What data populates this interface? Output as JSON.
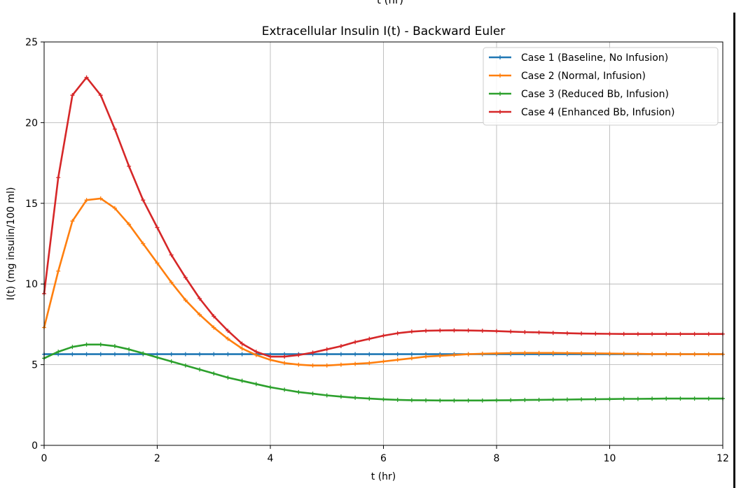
{
  "cutoff_label": "t (hr)",
  "chart_data": {
    "type": "line",
    "title": "Extracellular Insulin I(t) - Backward Euler",
    "xlabel": "t (hr)",
    "ylabel": "I(t) (mg insulin/100 ml)",
    "xlim": [
      0,
      12
    ],
    "ylim": [
      0,
      25
    ],
    "xticks": [
      0,
      2,
      4,
      6,
      8,
      10,
      12
    ],
    "yticks": [
      0,
      5,
      10,
      15,
      20,
      25
    ],
    "grid": true,
    "legend_position": "top-right",
    "x": [
      0,
      0.25,
      0.5,
      0.75,
      1.0,
      1.25,
      1.5,
      1.75,
      2.0,
      2.25,
      2.5,
      2.75,
      3.0,
      3.25,
      3.5,
      3.75,
      4.0,
      4.25,
      4.5,
      4.75,
      5.0,
      5.25,
      5.5,
      5.75,
      6.0,
      6.25,
      6.5,
      6.75,
      7.0,
      7.25,
      7.5,
      7.75,
      8.0,
      8.25,
      8.5,
      8.75,
      9.0,
      9.25,
      9.5,
      9.75,
      10.0,
      10.25,
      10.5,
      10.75,
      11.0,
      11.25,
      11.5,
      11.75,
      12.0
    ],
    "series": [
      {
        "name": "Case 1 (Baseline, No Infusion)",
        "color": "#1f77b4",
        "marker": "+",
        "values": [
          5.65,
          5.65,
          5.65,
          5.65,
          5.65,
          5.65,
          5.65,
          5.65,
          5.65,
          5.65,
          5.65,
          5.65,
          5.65,
          5.65,
          5.65,
          5.65,
          5.65,
          5.65,
          5.65,
          5.65,
          5.65,
          5.65,
          5.65,
          5.65,
          5.65,
          5.65,
          5.65,
          5.65,
          5.65,
          5.65,
          5.65,
          5.65,
          5.65,
          5.65,
          5.65,
          5.65,
          5.65,
          5.65,
          5.65,
          5.65,
          5.65,
          5.65,
          5.65,
          5.65,
          5.65,
          5.65,
          5.65,
          5.65,
          5.65
        ]
      },
      {
        "name": "Case 2 (Normal, Infusion)",
        "color": "#ff7f0e",
        "marker": "+",
        "values": [
          7.3,
          10.8,
          13.9,
          15.2,
          15.3,
          14.7,
          13.7,
          12.5,
          11.3,
          10.1,
          9.0,
          8.1,
          7.3,
          6.6,
          6.0,
          5.6,
          5.3,
          5.1,
          5.0,
          4.95,
          4.95,
          5.0,
          5.05,
          5.1,
          5.2,
          5.3,
          5.4,
          5.5,
          5.55,
          5.6,
          5.65,
          5.68,
          5.7,
          5.72,
          5.73,
          5.73,
          5.73,
          5.72,
          5.71,
          5.7,
          5.69,
          5.68,
          5.67,
          5.66,
          5.66,
          5.65,
          5.65,
          5.65,
          5.65
        ]
      },
      {
        "name": "Case 3 (Reduced Bb, Infusion)",
        "color": "#2ca02c",
        "marker": "+",
        "values": [
          5.4,
          5.8,
          6.1,
          6.25,
          6.25,
          6.15,
          5.95,
          5.7,
          5.45,
          5.2,
          4.95,
          4.7,
          4.45,
          4.2,
          4.0,
          3.8,
          3.6,
          3.45,
          3.3,
          3.2,
          3.1,
          3.02,
          2.95,
          2.9,
          2.85,
          2.82,
          2.8,
          2.79,
          2.78,
          2.78,
          2.78,
          2.78,
          2.79,
          2.8,
          2.81,
          2.82,
          2.83,
          2.84,
          2.85,
          2.86,
          2.87,
          2.88,
          2.88,
          2.89,
          2.9,
          2.9,
          2.9,
          2.9,
          2.9
        ]
      },
      {
        "name": "Case 4 (Enhanced Bb, Infusion)",
        "color": "#d62728",
        "marker": "+",
        "values": [
          9.4,
          16.6,
          21.7,
          22.8,
          21.7,
          19.6,
          17.3,
          15.2,
          13.5,
          11.8,
          10.4,
          9.1,
          8.0,
          7.1,
          6.3,
          5.8,
          5.5,
          5.5,
          5.6,
          5.75,
          5.95,
          6.15,
          6.4,
          6.6,
          6.8,
          6.95,
          7.05,
          7.1,
          7.12,
          7.13,
          7.12,
          7.1,
          7.08,
          7.05,
          7.02,
          7.0,
          6.97,
          6.95,
          6.93,
          6.92,
          6.91,
          6.9,
          6.9,
          6.9,
          6.9,
          6.9,
          6.9,
          6.9,
          6.9
        ]
      }
    ]
  }
}
